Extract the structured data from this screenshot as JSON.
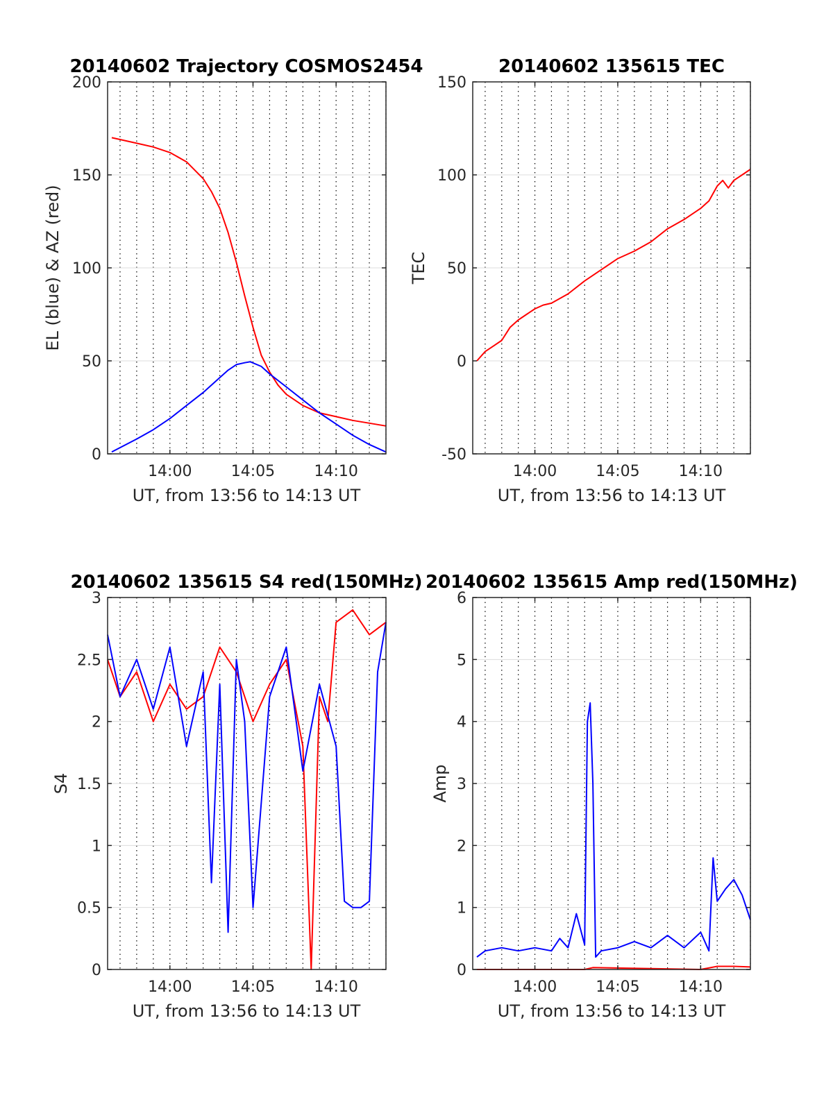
{
  "colors": {
    "az": "#ff0000",
    "el": "#0000ff",
    "tec": "#ff0000",
    "s4_red": "#ff0000",
    "s4_blue": "#0000ff",
    "amp_red": "#ff0000",
    "amp_blue": "#0000ff"
  },
  "chart_data": [
    {
      "id": "trajectory",
      "type": "line",
      "title": "20140602 Trajectory COSMOS2454",
      "xlabel": "UT, from 13:56 to 14:13 UT",
      "ylabel": "EL (blue) & AZ (red)",
      "xlim": [
        "13:56:15",
        "14:13:00"
      ],
      "ylim": [
        0,
        200
      ],
      "xticks": [
        "14:00",
        "14:05",
        "14:10"
      ],
      "yticks": [
        "0",
        "50",
        "100",
        "150",
        "200"
      ],
      "grid": true,
      "series": [
        {
          "color": "#ff0000",
          "x": [
            "13:56:30",
            "13:58:00",
            "13:59:00",
            "14:00:00",
            "14:01:00",
            "14:02:00",
            "14:02:30",
            "14:03:00",
            "14:03:30",
            "14:04:00",
            "14:04:30",
            "14:05:00",
            "14:05:30",
            "14:06:00",
            "14:06:30",
            "14:07:00",
            "14:08:00",
            "14:09:00",
            "14:10:00",
            "14:11:00",
            "14:12:00",
            "14:13:00"
          ],
          "y": [
            170,
            167,
            165,
            162,
            157,
            148,
            141,
            132,
            119,
            103,
            85,
            68,
            53,
            44,
            37,
            32,
            26,
            22,
            20,
            18,
            16.5,
            15
          ]
        },
        {
          "color": "#0000ff",
          "x": [
            "13:56:30",
            "13:58:00",
            "13:59:00",
            "14:00:00",
            "14:01:00",
            "14:02:00",
            "14:03:00",
            "14:03:30",
            "14:04:00",
            "14:04:30",
            "14:04:50",
            "14:05:30",
            "14:06:00",
            "14:07:00",
            "14:08:00",
            "14:09:00",
            "14:10:00",
            "14:11:00",
            "14:12:00",
            "14:13:00"
          ],
          "y": [
            1,
            8,
            13,
            19,
            26,
            33,
            41,
            45,
            48,
            49,
            49.5,
            47,
            43,
            36,
            29,
            22,
            16,
            10,
            5,
            1
          ]
        }
      ]
    },
    {
      "id": "tec",
      "type": "line",
      "title": "20140602 135615 TEC",
      "xlabel": "UT, from 13:56 to 14:13 UT",
      "ylabel": "TEC",
      "xlim": [
        "13:56:15",
        "14:13:00"
      ],
      "ylim": [
        -50,
        150
      ],
      "xticks": [
        "14:00",
        "14:05",
        "14:10"
      ],
      "yticks": [
        "-50",
        "0",
        "50",
        "100",
        "150"
      ],
      "grid": true,
      "series": [
        {
          "color": "#ff0000",
          "x": [
            "13:56:30",
            "13:57:00",
            "13:57:30",
            "13:58:00",
            "13:58:30",
            "13:59:00",
            "13:59:30",
            "14:00:00",
            "14:00:30",
            "14:01:00",
            "14:02:00",
            "14:03:00",
            "14:04:00",
            "14:05:00",
            "14:06:00",
            "14:07:00",
            "14:08:00",
            "14:09:00",
            "14:10:00",
            "14:10:30",
            "14:11:00",
            "14:11:20",
            "14:11:40",
            "14:12:00",
            "14:12:30",
            "14:13:00"
          ],
          "y": [
            0,
            5,
            8,
            11,
            18,
            22,
            25,
            28,
            30,
            31,
            36,
            43,
            49,
            55,
            59,
            64,
            71,
            76,
            82,
            86,
            94,
            97,
            93,
            97,
            100,
            103
          ]
        }
      ]
    },
    {
      "id": "s4",
      "type": "line",
      "title": "20140602 135615 S4 red(150MHz)",
      "xlabel": "UT, from 13:56 to 14:13 UT",
      "ylabel": "S4",
      "xlim": [
        "13:56:15",
        "14:13:00"
      ],
      "ylim": [
        0,
        3
      ],
      "xticks": [
        "14:00",
        "14:05",
        "14:10"
      ],
      "yticks": [
        "0",
        "0.5",
        "1",
        "1.5",
        "2",
        "2.5",
        "3"
      ],
      "grid": true,
      "series": [
        {
          "color": "#ff0000",
          "x": [
            "13:56:15",
            "13:57:00",
            "13:58:00",
            "13:59:00",
            "14:00:00",
            "14:01:00",
            "14:02:00",
            "14:03:00",
            "14:04:00",
            "14:05:00",
            "14:06:00",
            "14:07:00",
            "14:08:00",
            "14:08:30",
            "14:09:00",
            "14:09:30",
            "14:10:00",
            "14:11:00",
            "14:12:00",
            "14:13:00"
          ],
          "y": [
            2.5,
            2.2,
            2.4,
            2.0,
            2.3,
            2.1,
            2.2,
            2.6,
            2.4,
            2.0,
            2.3,
            2.5,
            1.8,
            0,
            2.2,
            2.0,
            2.8,
            2.9,
            2.7,
            2.8
          ]
        },
        {
          "color": "#0000ff",
          "x": [
            "13:56:15",
            "13:57:00",
            "13:58:00",
            "13:59:00",
            "14:00:00",
            "14:01:00",
            "14:02:00",
            "14:02:30",
            "14:03:00",
            "14:03:30",
            "14:04:00",
            "14:04:30",
            "14:05:00",
            "14:06:00",
            "14:07:00",
            "14:08:00",
            "14:09:00",
            "14:10:00",
            "14:10:30",
            "14:11:00",
            "14:11:30",
            "14:12:00",
            "14:12:30",
            "14:13:00"
          ],
          "y": [
            2.7,
            2.2,
            2.5,
            2.1,
            2.6,
            1.8,
            2.4,
            0.7,
            2.3,
            0.3,
            2.5,
            2.0,
            0.5,
            2.2,
            2.6,
            1.6,
            2.3,
            1.8,
            0.55,
            0.5,
            0.5,
            0.55,
            2.4,
            2.8
          ]
        }
      ]
    },
    {
      "id": "amp",
      "type": "line",
      "title": "20140602 135615 Amp red(150MHz)",
      "xlabel": "UT, from 13:56 to 14:13 UT",
      "ylabel": "Amp",
      "xlim": [
        "13:56:15",
        "14:13:00"
      ],
      "ylim": [
        0,
        6
      ],
      "xticks": [
        "14:00",
        "14:05",
        "14:10"
      ],
      "yticks": [
        "0",
        "1",
        "2",
        "3",
        "4",
        "5",
        "6"
      ],
      "grid": true,
      "series": [
        {
          "color": "#ff0000",
          "x": [
            "13:56:30",
            "14:03:00",
            "14:03:30",
            "14:10:00",
            "14:11:00",
            "14:12:00",
            "14:13:00"
          ],
          "y": [
            0,
            0,
            0.03,
            0,
            0.05,
            0.05,
            0.04
          ]
        },
        {
          "color": "#0000ff",
          "x": [
            "13:56:30",
            "13:57:00",
            "13:58:00",
            "13:59:00",
            "14:00:00",
            "14:01:00",
            "14:01:30",
            "14:02:00",
            "14:02:30",
            "14:03:00",
            "14:03:10",
            "14:03:20",
            "14:03:30",
            "14:03:40",
            "14:04:00",
            "14:05:00",
            "14:06:00",
            "14:07:00",
            "14:08:00",
            "14:09:00",
            "14:10:00",
            "14:10:30",
            "14:10:45",
            "14:11:00",
            "14:11:30",
            "14:12:00",
            "14:12:30",
            "14:13:00"
          ],
          "y": [
            0.2,
            0.3,
            0.35,
            0.3,
            0.35,
            0.3,
            0.5,
            0.35,
            0.9,
            0.4,
            4.0,
            4.3,
            3.0,
            0.2,
            0.3,
            0.35,
            0.45,
            0.35,
            0.55,
            0.35,
            0.6,
            0.3,
            1.8,
            1.1,
            1.3,
            1.45,
            1.2,
            0.8
          ]
        }
      ]
    }
  ]
}
